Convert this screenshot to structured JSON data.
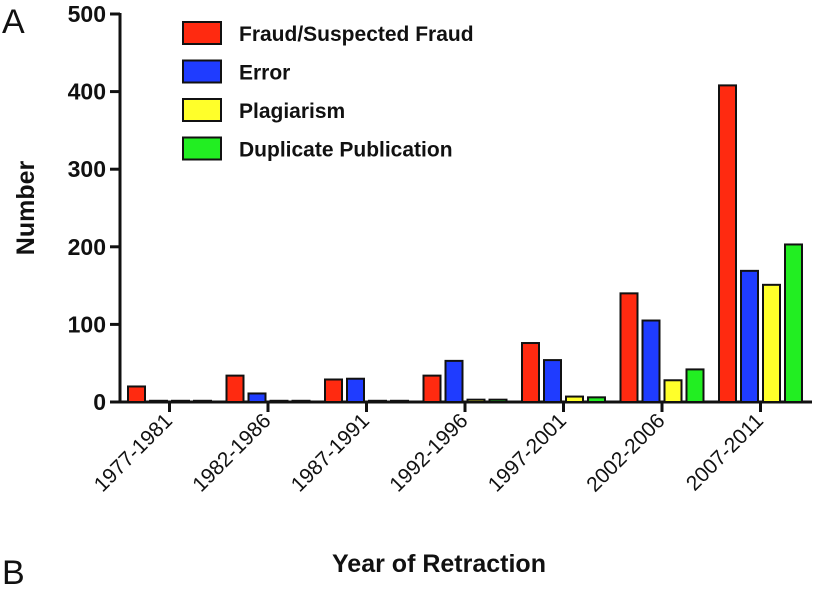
{
  "figure": {
    "panel_labels": [
      "A",
      "B"
    ]
  },
  "chart_data": {
    "type": "bar",
    "title": "",
    "xlabel": "Year of Retraction",
    "ylabel": "Number",
    "ylim": [
      0,
      500
    ],
    "yticks": [
      0,
      100,
      200,
      300,
      400,
      500
    ],
    "categories": [
      "1977-1981",
      "1982-1986",
      "1987-1991",
      "1992-1996",
      "1997-2001",
      "2002-2006",
      "2007-2011"
    ],
    "series": [
      {
        "name": "Fraud/Suspected Fraud",
        "color": "#ff2a10",
        "values": [
          20,
          34,
          29,
          34,
          76,
          140,
          408
        ]
      },
      {
        "name": "Error",
        "color": "#1f3cff",
        "values": [
          1,
          11,
          30,
          53,
          54,
          105,
          169
        ]
      },
      {
        "name": "Plagiarism",
        "color": "#ffff2a",
        "values": [
          0,
          0,
          0,
          3,
          7,
          28,
          151
        ]
      },
      {
        "name": "Duplicate Publication",
        "color": "#22ee22",
        "values": [
          0,
          0,
          0,
          3,
          6,
          42,
          203
        ]
      }
    ],
    "legend_position": "top-left",
    "grid": false
  }
}
